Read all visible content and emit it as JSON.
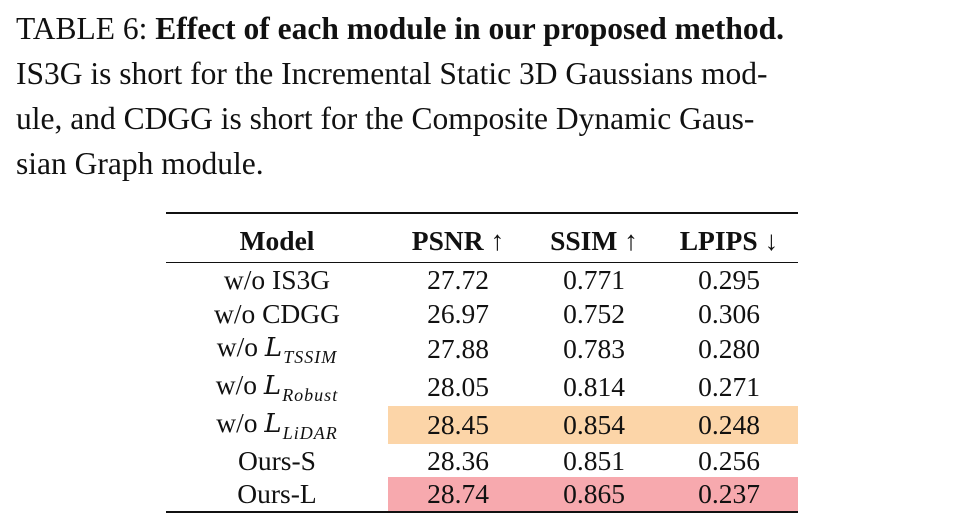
{
  "caption": {
    "label": "TABLE 6:",
    "title": "Effect of each module in our proposed method.",
    "line2": "IS3G is short for the Incremental Static 3D Gaussians mod-",
    "line3": "ule, and CDGG is short for the Composite Dynamic Gaus-",
    "line4": "sian Graph module."
  },
  "table": {
    "headers": [
      "Model",
      "PSNR ↑",
      "SSIM ↑",
      "LPIPS ↓"
    ],
    "rows": [
      {
        "model_prefix": "w/o IS3G",
        "model_var": "",
        "model_sub": "",
        "psnr": "27.72",
        "ssim": "0.771",
        "lpips": "0.295"
      },
      {
        "model_prefix": "w/o CDGG",
        "model_var": "",
        "model_sub": "",
        "psnr": "26.97",
        "ssim": "0.752",
        "lpips": "0.306"
      },
      {
        "model_prefix": "w/o ",
        "model_var": "L",
        "model_sub": "TSSIM",
        "psnr": "27.88",
        "ssim": "0.783",
        "lpips": "0.280"
      },
      {
        "model_prefix": "w/o ",
        "model_var": "L",
        "model_sub": "Robust",
        "psnr": "28.05",
        "ssim": "0.814",
        "lpips": "0.271"
      },
      {
        "model_prefix": "w/o ",
        "model_var": "L",
        "model_sub": "LiDAR",
        "psnr": "28.45",
        "ssim": "0.854",
        "lpips": "0.248"
      },
      {
        "model_prefix": "Ours-S",
        "model_var": "",
        "model_sub": "",
        "psnr": "28.36",
        "ssim": "0.851",
        "lpips": "0.256"
      },
      {
        "model_prefix": "Ours-L",
        "model_var": "",
        "model_sub": "",
        "psnr": "28.74",
        "ssim": "0.865",
        "lpips": "0.237"
      }
    ],
    "highlight_colors": {
      "second_best": "#fcd5a8",
      "best": "#f7a9ae"
    }
  }
}
